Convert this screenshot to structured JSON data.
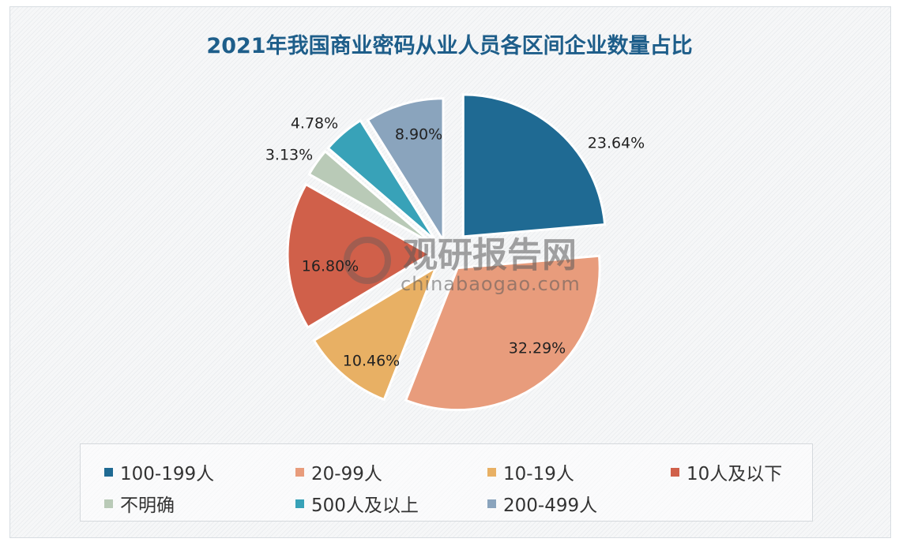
{
  "chart_data": {
    "type": "pie",
    "title": "2021年我国商业密码从业人员各区间企业数量占比",
    "exploded": true,
    "legend_position": "bottom",
    "slices": [
      {
        "name": "100-199人",
        "value": 23.64,
        "label": "23.64%",
        "color": "#1f6a93"
      },
      {
        "name": "20-99人",
        "value": 32.29,
        "label": "32.29%",
        "color": "#e89c7c"
      },
      {
        "name": "10-19人",
        "value": 10.46,
        "label": "10.46%",
        "color": "#e8b064"
      },
      {
        "name": "10人及以下",
        "value": 16.8,
        "label": "16.80%",
        "color": "#d0604a"
      },
      {
        "name": "不明确",
        "value": 3.13,
        "label": "3.13%",
        "color": "#b9cab7"
      },
      {
        "name": "500人及以上",
        "value": 4.78,
        "label": "4.78%",
        "color": "#38a2b8"
      },
      {
        "name": "200-499人",
        "value": 8.9,
        "label": "8.90%",
        "color": "#8aa4bd"
      }
    ]
  },
  "watermark": {
    "logo_text": "观研报告网",
    "url": "chinabaogao.com"
  }
}
